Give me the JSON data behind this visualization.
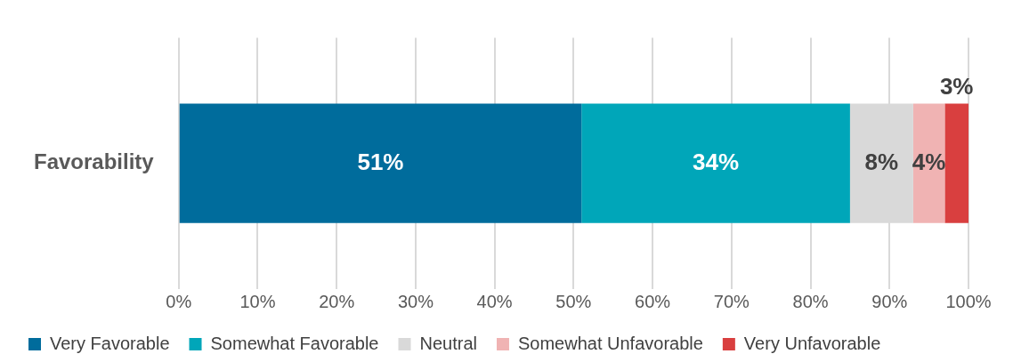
{
  "chart_data": {
    "type": "bar",
    "orientation": "horizontal",
    "stacked": true,
    "categories": [
      "Favorability"
    ],
    "series": [
      {
        "name": "Very Favorable",
        "color": "#006c9c",
        "values": [
          51
        ],
        "value_labels": [
          "51%"
        ]
      },
      {
        "name": "Somewhat Favorable",
        "color": "#00a6b9",
        "values": [
          34
        ],
        "value_labels": [
          "34%"
        ]
      },
      {
        "name": "Neutral",
        "color": "#d9d9d9",
        "values": [
          8
        ],
        "value_labels": [
          "8%"
        ]
      },
      {
        "name": "Somewhat Unfavorable",
        "color": "#f0b3b3",
        "values": [
          4
        ],
        "value_labels": [
          "4%"
        ]
      },
      {
        "name": "Very Unfavorable",
        "color": "#d93f3f",
        "values": [
          3
        ],
        "value_labels": [
          "3%"
        ]
      }
    ],
    "xlim": [
      0,
      100
    ],
    "xticks": [
      {
        "value": 0,
        "label": "0%"
      },
      {
        "value": 10,
        "label": "10%"
      },
      {
        "value": 20,
        "label": "20%"
      },
      {
        "value": 30,
        "label": "30%"
      },
      {
        "value": 40,
        "label": "40%"
      },
      {
        "value": 50,
        "label": "50%"
      },
      {
        "value": 60,
        "label": "60%"
      },
      {
        "value": 70,
        "label": "70%"
      },
      {
        "value": 80,
        "label": "80%"
      },
      {
        "value": 90,
        "label": "90%"
      },
      {
        "value": 100,
        "label": "100%"
      }
    ],
    "grid": "x",
    "legend": "bottom"
  }
}
